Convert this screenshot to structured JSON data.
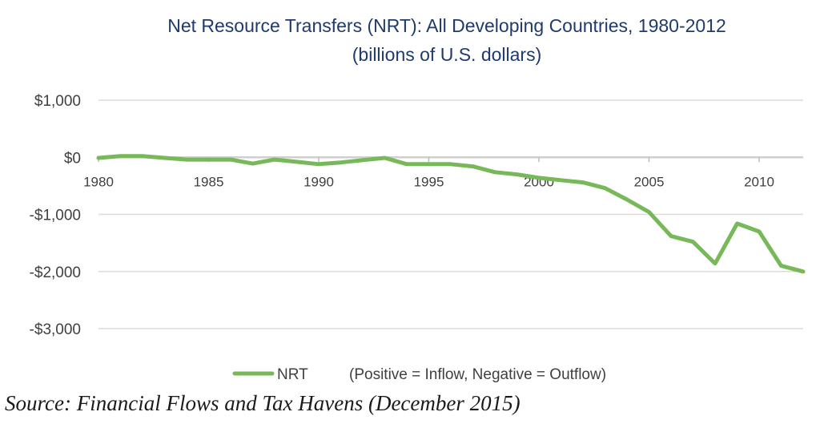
{
  "chart_data": {
    "type": "line",
    "title": "Net Resource Transfers (NRT): All Developing Countries, 1980-2012",
    "subtitle": "(billions of U.S. dollars)",
    "xlim": [
      1980,
      2012
    ],
    "ylim": [
      -3000,
      1000
    ],
    "yticks": [
      1000,
      0,
      -1000,
      -2000,
      -3000
    ],
    "ytick_labels": [
      "$1,000",
      "$0",
      "-$1,000",
      "-$2,000",
      "-$3,000"
    ],
    "xticks": [
      "1980",
      "1985",
      "1990",
      "1995",
      "2000",
      "2005",
      "2010"
    ],
    "grid": "horizontal",
    "legend_position": "bottom",
    "legend_note": "(Positive = Inflow, Negative = Outflow)",
    "line_color": "#77b858",
    "series": [
      {
        "name": "NRT",
        "x": [
          1980,
          1981,
          1982,
          1983,
          1984,
          1985,
          1986,
          1987,
          1988,
          1989,
          1990,
          1991,
          1992,
          1993,
          1994,
          1995,
          1996,
          1997,
          1998,
          1999,
          2000,
          2001,
          2002,
          2003,
          2004,
          2005,
          2006,
          2007,
          2008,
          2009,
          2010,
          2011,
          2012
        ],
        "y": [
          -10,
          20,
          20,
          -10,
          -40,
          -40,
          -40,
          -110,
          -40,
          -80,
          -120,
          -90,
          -50,
          -10,
          -120,
          -120,
          -120,
          -160,
          -260,
          -300,
          -360,
          -400,
          -440,
          -540,
          -740,
          -960,
          -1380,
          -1480,
          -1860,
          -1160,
          -1300,
          -1900,
          -2000
        ]
      }
    ]
  },
  "source": "Source: Financial Flows and Tax Havens (December 2015)"
}
